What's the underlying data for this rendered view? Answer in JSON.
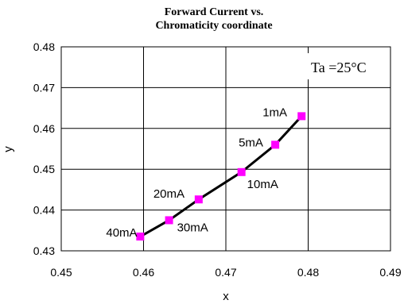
{
  "chart_data": {
    "type": "line",
    "title": [
      "Forward Current vs.",
      "Chromaticity coordinate"
    ],
    "xlabel": "x",
    "ylabel": "y",
    "xlim": [
      0.45,
      0.49
    ],
    "ylim": [
      0.43,
      0.48
    ],
    "x_ticks": [
      "0.45",
      "0.46",
      "0.47",
      "0.48",
      "0.49"
    ],
    "y_ticks": [
      "0.43",
      "0.44",
      "0.45",
      "0.46",
      "0.47",
      "0.48"
    ],
    "grid": true,
    "annotation": "Ta =25°C",
    "marker_color": "#ff00ff",
    "line_color": "#000000",
    "points": [
      {
        "label": "1mA",
        "x": 0.4792,
        "y": 0.463
      },
      {
        "label": "5mA",
        "x": 0.476,
        "y": 0.456
      },
      {
        "label": "10mA",
        "x": 0.4719,
        "y": 0.4493
      },
      {
        "label": "20mA",
        "x": 0.4667,
        "y": 0.4426
      },
      {
        "label": "30mA",
        "x": 0.4631,
        "y": 0.4375
      },
      {
        "label": "40mA",
        "x": 0.4596,
        "y": 0.4335
      }
    ]
  }
}
